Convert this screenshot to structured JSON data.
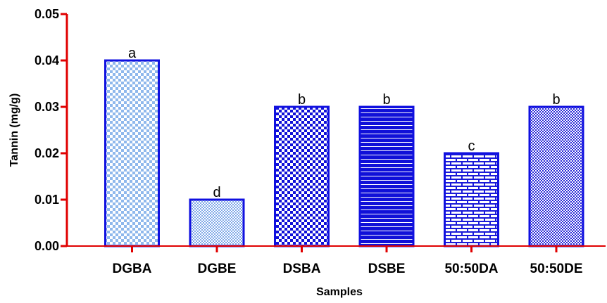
{
  "chart_data": {
    "type": "bar",
    "categories": [
      "DGBA",
      "DGBE",
      "DSBA",
      "DSBE",
      "50:50DA",
      "50:50DE"
    ],
    "values": [
      0.04,
      0.01,
      0.03,
      0.03,
      0.02,
      0.03
    ],
    "data_labels": [
      "a",
      "d",
      "b",
      "b",
      "c",
      "b"
    ],
    "title": "",
    "xlabel": "Samples",
    "ylabel": "Tannin  (mg/g)",
    "ylim": [
      0,
      0.05
    ],
    "yticks": [
      "0.00",
      "0.01",
      "0.02",
      "0.03",
      "0.04",
      "0.05"
    ],
    "grid": false,
    "colors": {
      "bar_outline": "#1010e0",
      "axis": "#e00000",
      "pattern_light": "#9ec4f0",
      "pattern_dark": "#1010e0"
    }
  }
}
